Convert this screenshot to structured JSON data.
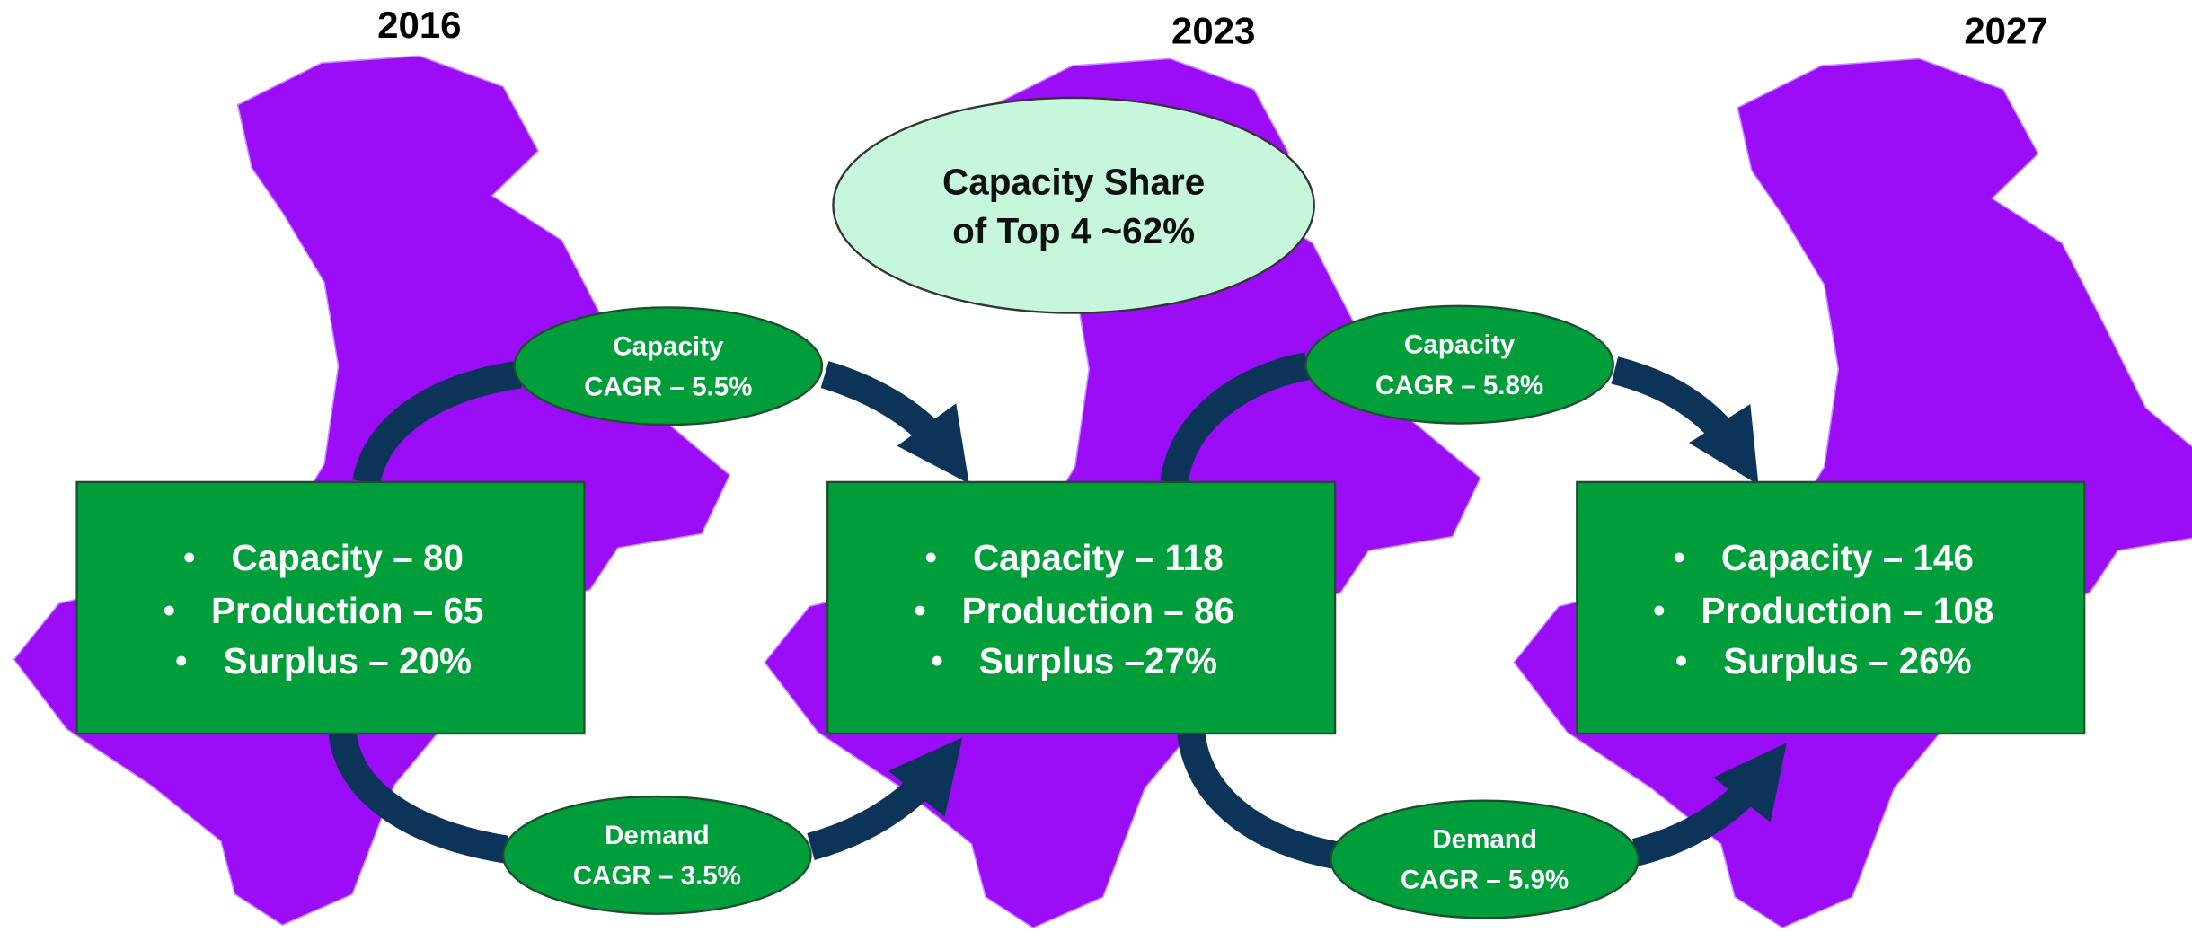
{
  "years": [
    "2016",
    "2023",
    "2027"
  ],
  "boxes": [
    {
      "lines": [
        "Capacity – 80",
        "Production – 65",
        "Surplus – 20%"
      ]
    },
    {
      "lines": [
        "Capacity – 118",
        "Production – 86",
        "Surplus –27%"
      ]
    },
    {
      "lines": [
        "Capacity – 146",
        "Production – 108",
        "Surplus – 26%"
      ]
    }
  ],
  "callout": {
    "lines": [
      "Capacity Share",
      "of Top 4 ~62%"
    ]
  },
  "ellipses": [
    {
      "lines": [
        "Capacity",
        "CAGR – 5.5%"
      ]
    },
    {
      "lines": [
        "Capacity",
        "CAGR – 5.8%"
      ]
    },
    {
      "lines": [
        "Demand",
        "CAGR – 3.5%"
      ]
    },
    {
      "lines": [
        "Demand",
        "CAGR – 5.9%"
      ]
    }
  ]
}
